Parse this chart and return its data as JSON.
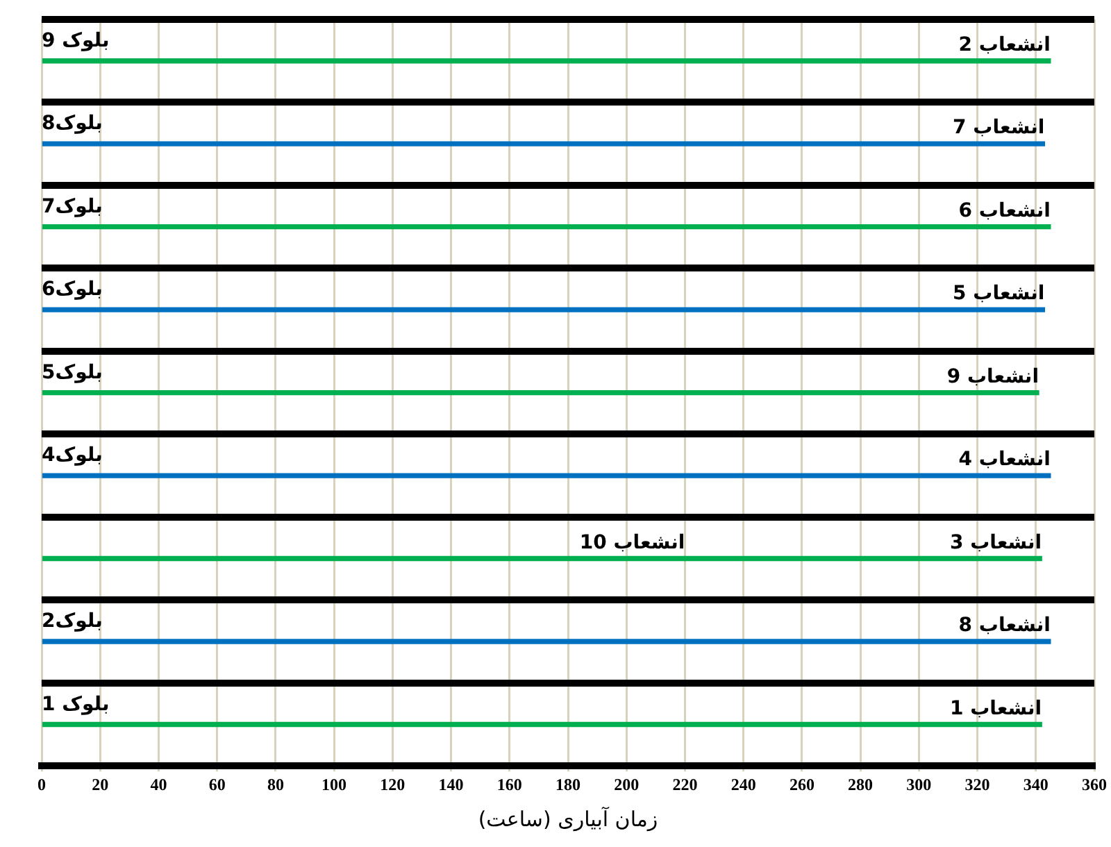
{
  "chart_data": {
    "type": "bar",
    "orientation": "horizontal",
    "stacked": true,
    "xlabel": "زمان آبیاری (ساعت)",
    "categories": [
      "بلوک 9",
      "بلوک8",
      "بلوک7",
      "بلوک6",
      "بلوک5",
      "بلوک4",
      null,
      "بلوک2",
      "بلوک 1"
    ],
    "series": [
      {
        "colors": [
          "#00b050",
          "#0070c0",
          "#00b050",
          "#0070c0",
          "#00b050",
          "#0070c0",
          "#00b050",
          "#0070c0",
          "#00b050"
        ],
        "values": [
          345,
          343,
          345,
          343,
          341,
          345,
          220,
          345,
          342
        ],
        "value_labels": [
          "انشعاب 2",
          "انشعاب 7",
          "انشعاب 6",
          "انشعاب 5",
          "انشعاب 9",
          "انشعاب 4",
          "انشعاب 10",
          "انشعاب 8",
          "انشعاب 1"
        ]
      },
      {
        "color": "#00b050",
        "values": [
          null,
          null,
          null,
          null,
          null,
          null,
          122,
          null,
          null
        ],
        "value_labels": [
          null,
          null,
          null,
          null,
          null,
          null,
          "انشعاب 3",
          null,
          null
        ]
      }
    ],
    "xlim": [
      0,
      360
    ],
    "xticks": [
      0,
      20,
      40,
      60,
      80,
      100,
      120,
      140,
      160,
      180,
      200,
      220,
      240,
      260,
      280,
      300,
      320,
      340,
      360
    ],
    "grid": true,
    "legend": false
  }
}
